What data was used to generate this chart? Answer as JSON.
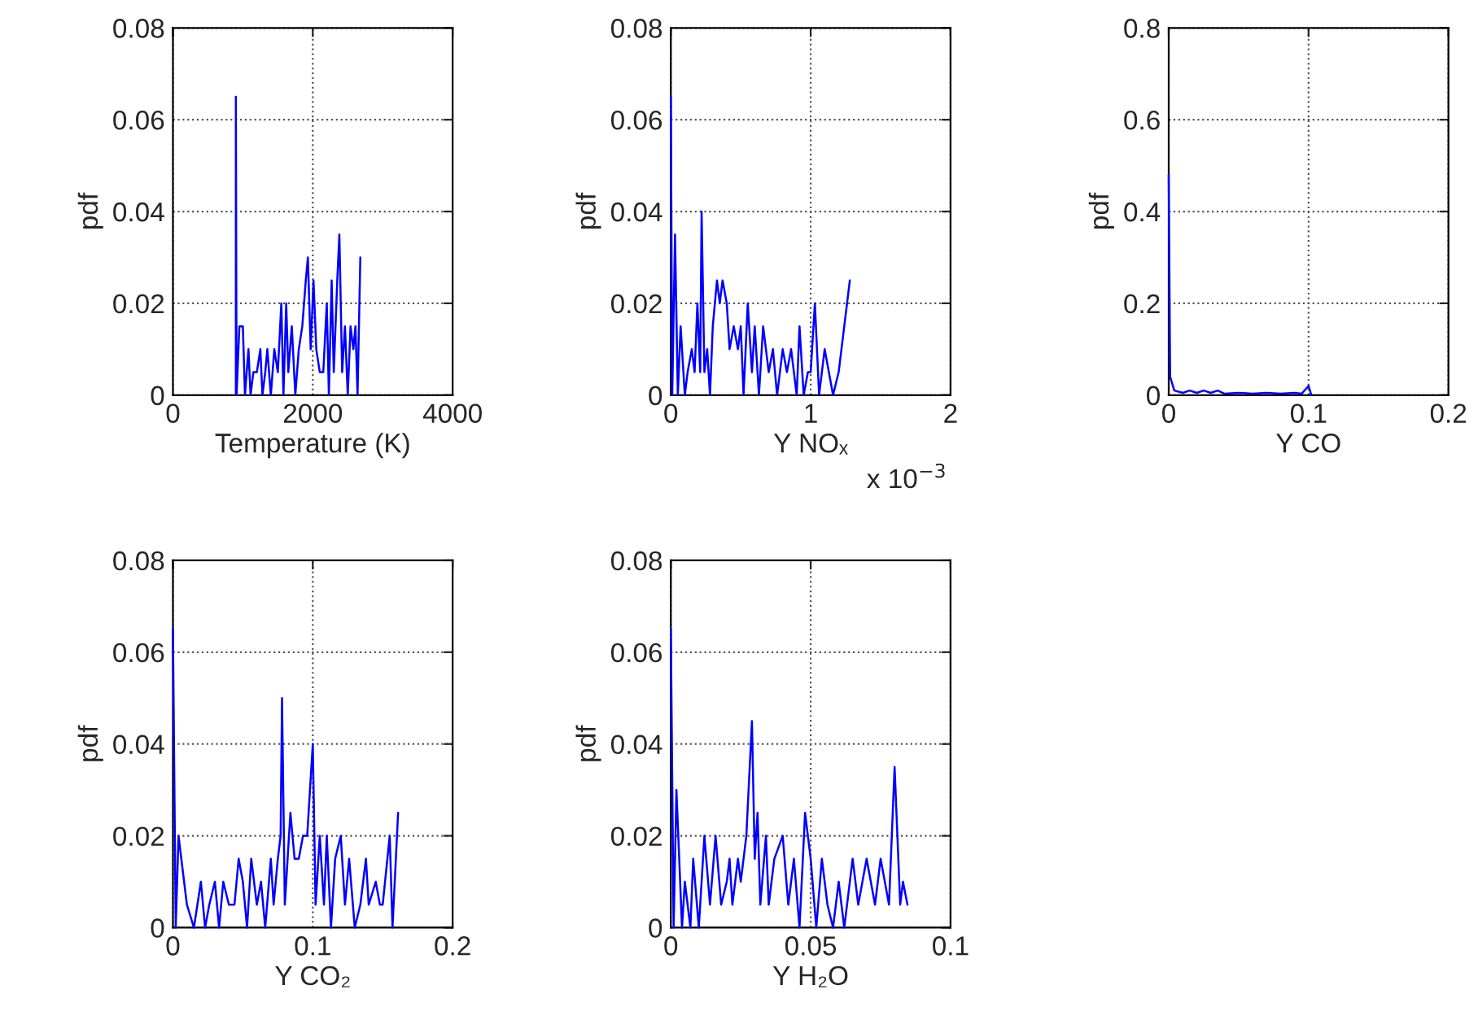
{
  "chart_data": [
    {
      "type": "line",
      "xlabel": "Temperature (K)",
      "ylabel": "pdf",
      "xlim": [
        0,
        4000
      ],
      "xticks": [
        0,
        2000,
        4000
      ],
      "ylim": [
        0,
        0.08
      ],
      "yticks": [
        0,
        0.02,
        0.04,
        0.06,
        0.08
      ],
      "grid": true,
      "x": [
        900,
        900,
        910,
        950,
        1000,
        1030,
        1080,
        1110,
        1150,
        1200,
        1250,
        1280,
        1320,
        1350,
        1400,
        1450,
        1500,
        1550,
        1580,
        1620,
        1650,
        1700,
        1750,
        1800,
        1850,
        1900,
        1930,
        1970,
        2010,
        2050,
        2100,
        2150,
        2200,
        2230,
        2270,
        2300,
        2350,
        2380,
        2420,
        2460,
        2500,
        2540,
        2580,
        2610,
        2640,
        2680
      ],
      "series": [
        {
          "color": "#0000ff",
          "values": [
            0,
            0.065,
            0,
            0.015,
            0.015,
            0,
            0.01,
            0,
            0.005,
            0.005,
            0.01,
            0,
            0.005,
            0.01,
            0,
            0.01,
            0.005,
            0.02,
            0,
            0.02,
            0.005,
            0.015,
            0,
            0.01,
            0.015,
            0.025,
            0.03,
            0.01,
            0.025,
            0.01,
            0.005,
            0.005,
            0.02,
            0,
            0.025,
            0.005,
            0.025,
            0.035,
            0.005,
            0.015,
            0,
            0.015,
            0.01,
            0.015,
            0,
            0.03
          ]
        }
      ]
    },
    {
      "type": "line",
      "xlabel": "Y NOₓ",
      "ylabel": "pdf",
      "annotations": [
        "x 10$^{−3}$"
      ],
      "xlim": [
        0,
        2
      ],
      "xticks": [
        0,
        1,
        2
      ],
      "ylim": [
        0,
        0.08
      ],
      "yticks": [
        0,
        0.02,
        0.04,
        0.06,
        0.08
      ],
      "grid": true,
      "x": [
        0,
        0.01,
        0.03,
        0.05,
        0.07,
        0.1,
        0.12,
        0.15,
        0.17,
        0.19,
        0.21,
        0.22,
        0.24,
        0.26,
        0.28,
        0.3,
        0.33,
        0.35,
        0.37,
        0.4,
        0.42,
        0.45,
        0.48,
        0.5,
        0.52,
        0.55,
        0.58,
        0.6,
        0.63,
        0.66,
        0.7,
        0.73,
        0.76,
        0.8,
        0.83,
        0.86,
        0.9,
        0.92,
        0.95,
        0.98,
        1.0,
        1.03,
        1.06,
        1.1,
        1.13,
        1.16,
        1.2,
        1.28
      ],
      "series": [
        {
          "color": "#0000ff",
          "values": [
            0.065,
            0,
            0.035,
            0,
            0.015,
            0,
            0.005,
            0.01,
            0.005,
            0.02,
            0.005,
            0.04,
            0.005,
            0.01,
            0,
            0.015,
            0.025,
            0.02,
            0.025,
            0.02,
            0.01,
            0.015,
            0.01,
            0.015,
            0,
            0.02,
            0.005,
            0.015,
            0,
            0.015,
            0.005,
            0.01,
            0,
            0.01,
            0.005,
            0.01,
            0,
            0.015,
            0,
            0.005,
            0.005,
            0.02,
            0,
            0.01,
            0.005,
            0,
            0.005,
            0.025
          ]
        }
      ]
    },
    {
      "type": "line",
      "xlabel": "Y CO",
      "ylabel": "pdf",
      "xlim": [
        0,
        0.2
      ],
      "xticks": [
        0,
        0.1,
        0.2
      ],
      "ylim": [
        0,
        0.8
      ],
      "yticks": [
        0,
        0.2,
        0.4,
        0.6,
        0.8
      ],
      "grid": true,
      "x": [
        0,
        0.001,
        0.004,
        0.01,
        0.015,
        0.02,
        0.025,
        0.03,
        0.035,
        0.04,
        0.05,
        0.06,
        0.07,
        0.08,
        0.09,
        0.095,
        0.1,
        0.102
      ],
      "series": [
        {
          "color": "#0000ff",
          "values": [
            0.48,
            0.04,
            0.01,
            0.005,
            0.01,
            0.005,
            0.01,
            0.005,
            0.01,
            0.003,
            0.005,
            0.003,
            0.005,
            0.003,
            0.005,
            0.003,
            0.02,
            0
          ]
        }
      ]
    },
    {
      "type": "line",
      "xlabel": "Y CO₂",
      "ylabel": "pdf",
      "xlim": [
        0,
        0.2
      ],
      "xticks": [
        0,
        0.1,
        0.2
      ],
      "ylim": [
        0,
        0.08
      ],
      "yticks": [
        0,
        0.02,
        0.04,
        0.06,
        0.08
      ],
      "grid": true,
      "x": [
        0,
        0.002,
        0.004,
        0.01,
        0.015,
        0.02,
        0.023,
        0.026,
        0.03,
        0.033,
        0.036,
        0.04,
        0.044,
        0.047,
        0.05,
        0.053,
        0.056,
        0.06,
        0.063,
        0.066,
        0.07,
        0.072,
        0.075,
        0.077,
        0.078,
        0.08,
        0.082,
        0.084,
        0.087,
        0.09,
        0.093,
        0.096,
        0.1,
        0.102,
        0.105,
        0.108,
        0.11,
        0.113,
        0.116,
        0.12,
        0.123,
        0.126,
        0.13,
        0.134,
        0.138,
        0.14,
        0.145,
        0.148,
        0.15,
        0.155,
        0.157,
        0.161
      ],
      "series": [
        {
          "color": "#0000ff",
          "values": [
            0.065,
            0,
            0.02,
            0.005,
            0,
            0.01,
            0,
            0.005,
            0.01,
            0,
            0.01,
            0.005,
            0.005,
            0.015,
            0.01,
            0,
            0.015,
            0.005,
            0.01,
            0,
            0.015,
            0.005,
            0.015,
            0.02,
            0.05,
            0.005,
            0.015,
            0.025,
            0.015,
            0.015,
            0.02,
            0.02,
            0.04,
            0.005,
            0.02,
            0.005,
            0.02,
            0,
            0.015,
            0.02,
            0.005,
            0.015,
            0,
            0.005,
            0.015,
            0.005,
            0.01,
            0.005,
            0.005,
            0.02,
            0,
            0.025
          ]
        }
      ]
    },
    {
      "type": "line",
      "xlabel": "Y H₂O",
      "ylabel": "pdf",
      "xlim": [
        0,
        0.1
      ],
      "xticks": [
        0,
        0.05,
        0.1
      ],
      "ylim": [
        0,
        0.08
      ],
      "yticks": [
        0,
        0.02,
        0.04,
        0.06,
        0.08
      ],
      "grid": true,
      "x": [
        0,
        0.001,
        0.002,
        0.004,
        0.005,
        0.007,
        0.008,
        0.01,
        0.012,
        0.014,
        0.016,
        0.018,
        0.02,
        0.021,
        0.022,
        0.024,
        0.025,
        0.027,
        0.029,
        0.03,
        0.031,
        0.032,
        0.034,
        0.035,
        0.037,
        0.04,
        0.042,
        0.044,
        0.046,
        0.048,
        0.05,
        0.052,
        0.054,
        0.056,
        0.058,
        0.06,
        0.062,
        0.065,
        0.067,
        0.07,
        0.073,
        0.075,
        0.078,
        0.08,
        0.082,
        0.083,
        0.0846
      ],
      "series": [
        {
          "color": "#0000ff",
          "values": [
            0.065,
            0,
            0.03,
            0,
            0.01,
            0,
            0.015,
            0,
            0.02,
            0.005,
            0.02,
            0.005,
            0.01,
            0.015,
            0.005,
            0.015,
            0.01,
            0.02,
            0.045,
            0.015,
            0.025,
            0.005,
            0.02,
            0.005,
            0.015,
            0.02,
            0.005,
            0.015,
            0,
            0.025,
            0.015,
            0,
            0.015,
            0.005,
            0,
            0.01,
            0,
            0.015,
            0.005,
            0.015,
            0.005,
            0.015,
            0.005,
            0.035,
            0.005,
            0.01,
            0.005
          ]
        }
      ]
    }
  ]
}
